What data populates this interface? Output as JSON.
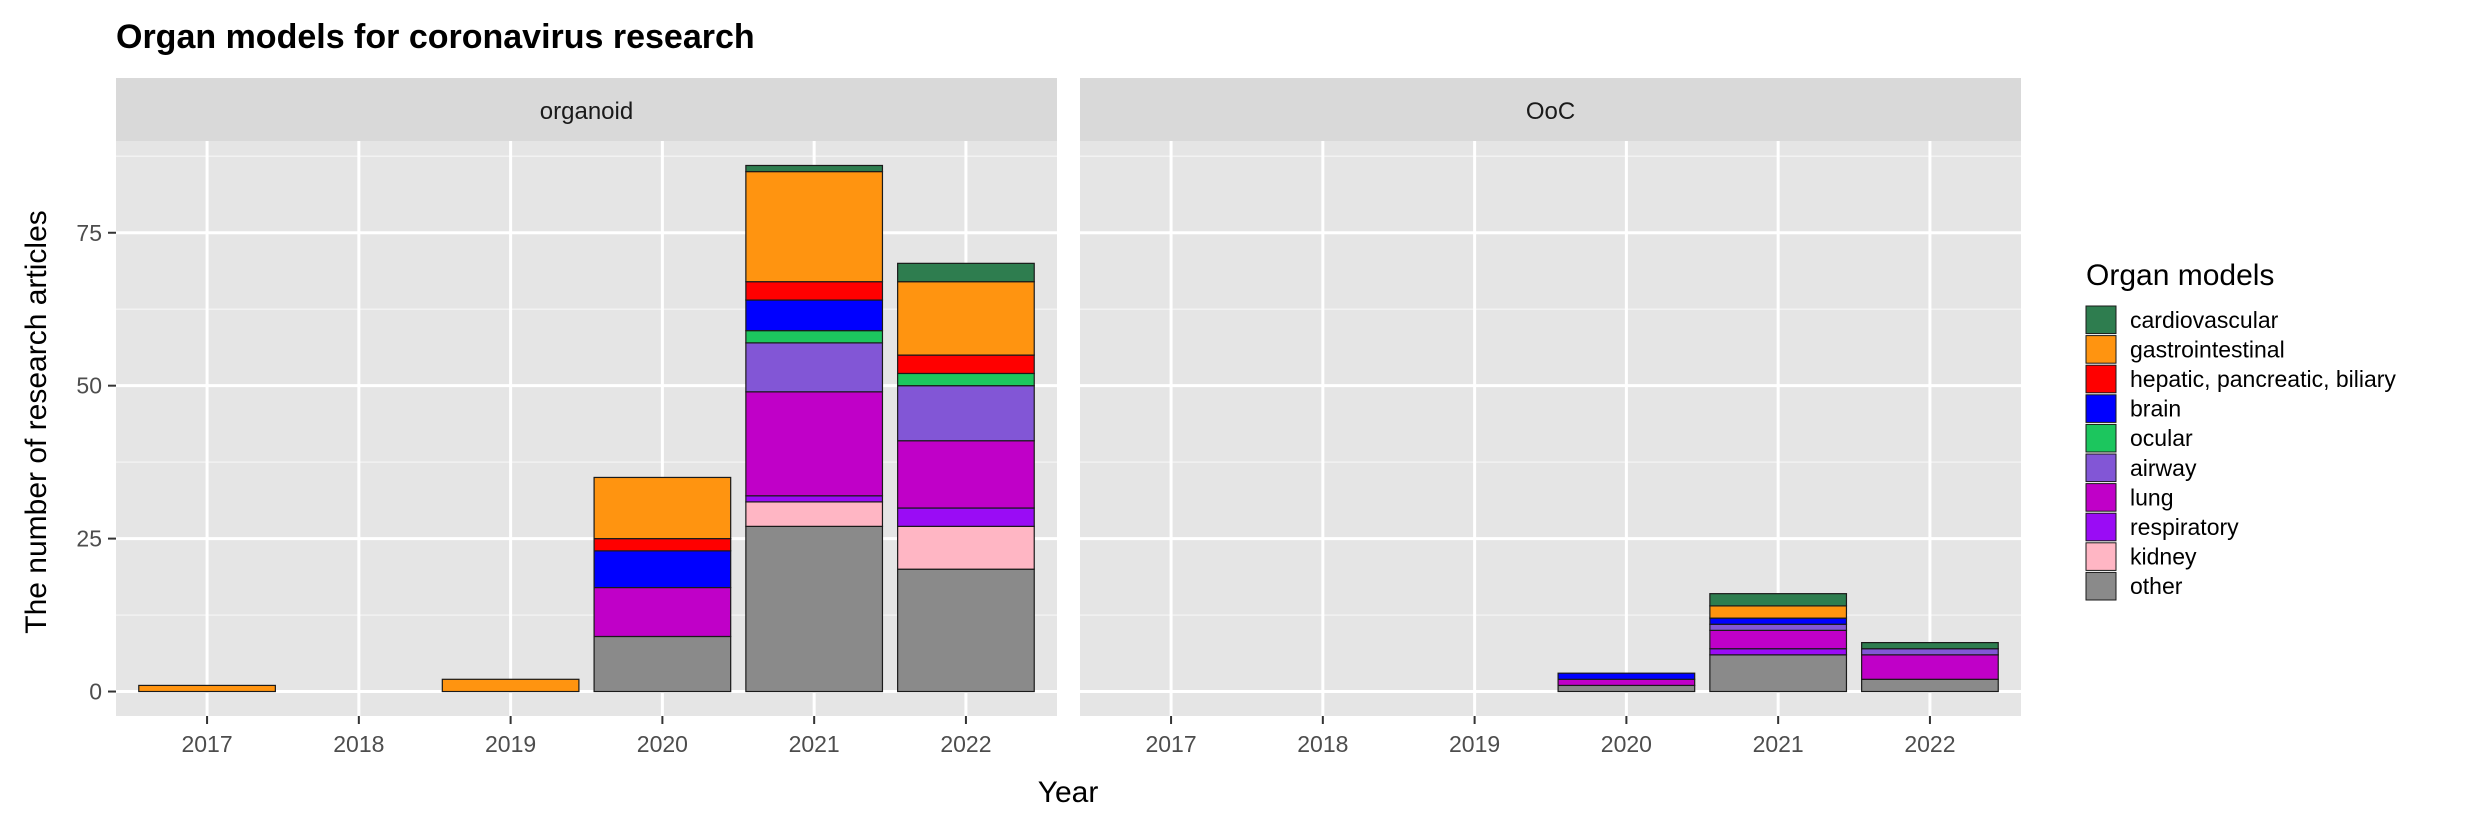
{
  "chart_data": {
    "type": "bar",
    "stacked": true,
    "title": "Organ models for coronavirus research",
    "xlabel": "Year",
    "ylabel": "The number of research articles",
    "ylim": [
      -4,
      90
    ],
    "yticks": [
      0,
      25,
      50,
      75
    ],
    "grid": true,
    "legend_position": "right",
    "legend_title": "Organ models",
    "categories": [
      "2017",
      "2018",
      "2019",
      "2020",
      "2021",
      "2022"
    ],
    "series": [
      {
        "name": "cardiovascular",
        "color": "#2e7d4f"
      },
      {
        "name": "gastrointestinal",
        "color": "#ff9410"
      },
      {
        "name": "hepatic, pancreatic, biliary",
        "color": "#ff0000"
      },
      {
        "name": "brain",
        "color": "#0000ff"
      },
      {
        "name": "ocular",
        "color": "#1cc65e"
      },
      {
        "name": "airway",
        "color": "#8256d6"
      },
      {
        "name": "lung",
        "color": "#c000c8"
      },
      {
        "name": "respiratory",
        "color": "#9a0cf5"
      },
      {
        "name": "kidney",
        "color": "#ffb6c4"
      },
      {
        "name": "other",
        "color": "#8a8a8a"
      }
    ],
    "facets": [
      {
        "name": "organoid",
        "values": {
          "other": [
            0,
            0,
            0,
            9,
            27,
            20
          ],
          "kidney": [
            0,
            0,
            0,
            0,
            4,
            7
          ],
          "respiratory": [
            0,
            0,
            0,
            0,
            1,
            3
          ],
          "lung": [
            0,
            0,
            0,
            8,
            17,
            11
          ],
          "airway": [
            0,
            0,
            0,
            0,
            8,
            9
          ],
          "ocular": [
            0,
            0,
            0,
            0,
            2,
            2
          ],
          "brain": [
            0,
            0,
            0,
            6,
            5,
            0
          ],
          "hepatic, pancreatic, biliary": [
            0,
            0,
            0,
            2,
            3,
            3
          ],
          "gastrointestinal": [
            1,
            0,
            2,
            10,
            18,
            12
          ],
          "cardiovascular": [
            0,
            0,
            0,
            0,
            1,
            3
          ]
        }
      },
      {
        "name": "OoC",
        "values": {
          "other": [
            0,
            0,
            0,
            1,
            6,
            2
          ],
          "kidney": [
            0,
            0,
            0,
            0,
            0,
            0
          ],
          "respiratory": [
            0,
            0,
            0,
            0,
            1,
            0
          ],
          "lung": [
            0,
            0,
            0,
            1,
            3,
            4
          ],
          "airway": [
            0,
            0,
            0,
            0,
            1,
            1
          ],
          "ocular": [
            0,
            0,
            0,
            0,
            0,
            0
          ],
          "brain": [
            0,
            0,
            0,
            1,
            1,
            0
          ],
          "hepatic, pancreatic, biliary": [
            0,
            0,
            0,
            0,
            0,
            0
          ],
          "gastrointestinal": [
            0,
            0,
            0,
            0,
            2,
            0
          ],
          "cardiovascular": [
            0,
            0,
            0,
            0,
            2,
            1
          ]
        }
      }
    ]
  }
}
